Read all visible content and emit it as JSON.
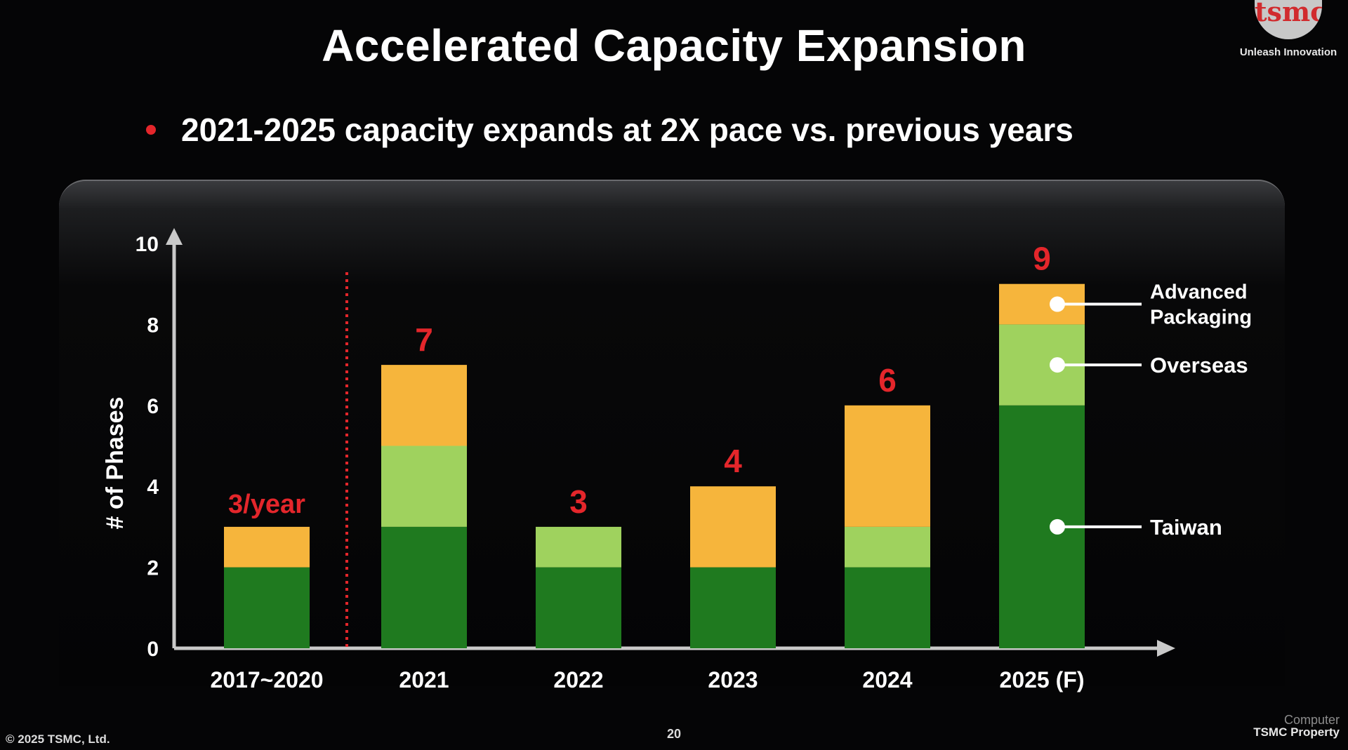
{
  "slide": {
    "title": "Accelerated Capacity Expansion",
    "bullet": "2021-2025 capacity expands at 2X pace vs. previous years",
    "logo_text": "tsmc",
    "logo_tagline": "Unleash Innovation",
    "copyright": "© 2025 TSMC, Ltd.",
    "page_number": "20",
    "property_label": "TSMC Property",
    "watermark": "Computer"
  },
  "colors": {
    "taiwan": "#1f7a1f",
    "overseas": "#9fd25e",
    "advanced_packaging": "#f6b53c",
    "total_label": "#e4262b",
    "axis": "#c9c9c9",
    "divider": "#e4262b"
  },
  "chart_data": {
    "type": "bar",
    "stacked": true,
    "ylabel": "# of Phases",
    "ylim": [
      0,
      10
    ],
    "yticks": [
      0,
      2,
      4,
      6,
      8,
      10
    ],
    "categories": [
      "2017~2020",
      "2021",
      "2022",
      "2023",
      "2024",
      "2025 (F)"
    ],
    "series": [
      {
        "name": "Taiwan",
        "values": [
          2,
          3,
          2,
          2,
          2,
          6
        ]
      },
      {
        "name": "Overseas",
        "values": [
          0,
          2,
          1,
          0,
          1,
          2
        ]
      },
      {
        "name": "Advanced Packaging",
        "values": [
          1,
          2,
          0,
          2,
          3,
          1
        ]
      }
    ],
    "totals": [
      "3/year",
      "7",
      "3",
      "4",
      "6",
      "9"
    ],
    "legend": [
      "Advanced Packaging",
      "Overseas",
      "Taiwan"
    ],
    "divider_after": "2017~2020"
  }
}
